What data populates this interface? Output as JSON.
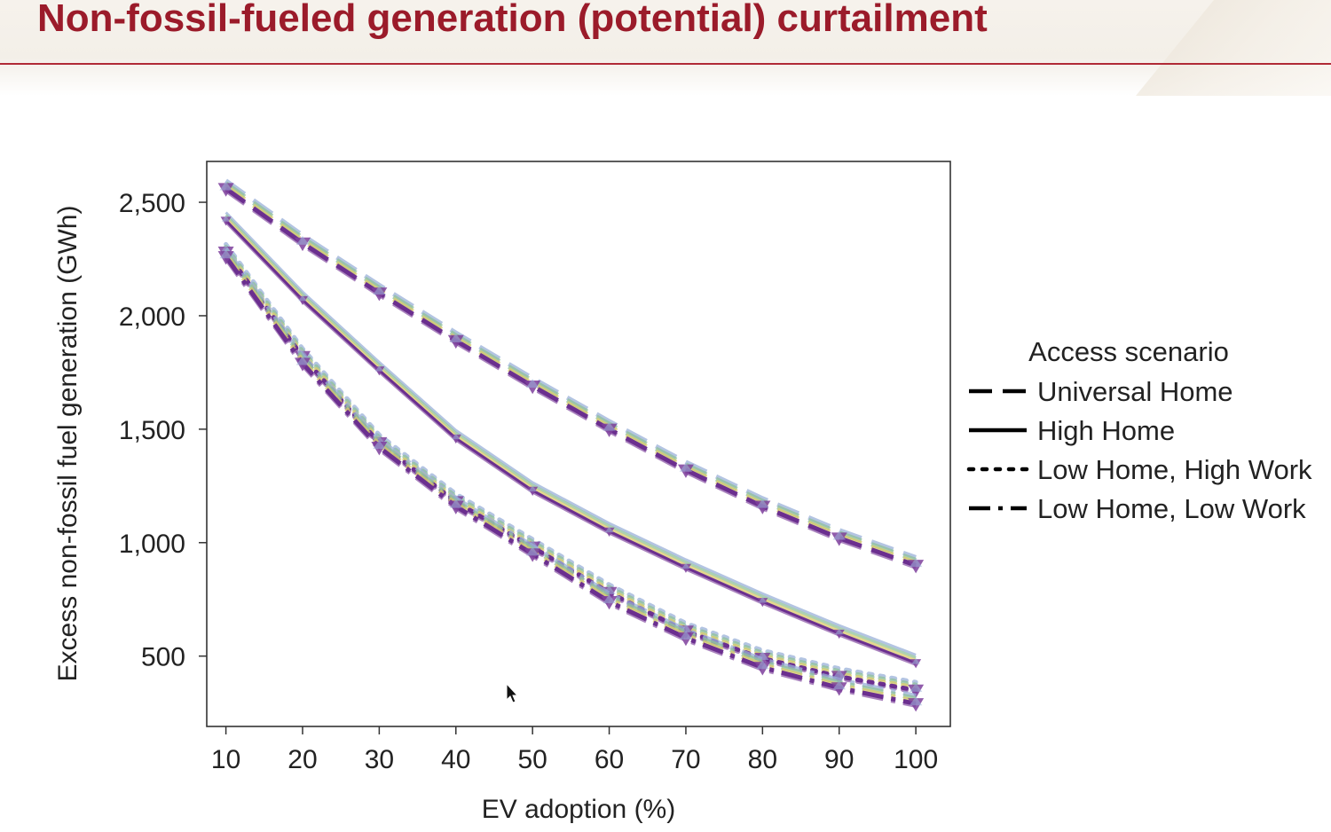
{
  "slide": {
    "title": "Non-fossil-fueled generation (potential) curtailment"
  },
  "chart_data": {
    "type": "line",
    "title": "",
    "xlabel": "EV adoption (%)",
    "ylabel": "Excess non-fossil fuel generation (GWh)",
    "x": [
      10,
      20,
      30,
      40,
      50,
      60,
      70,
      80,
      90,
      100
    ],
    "x_tick_labels": [
      "10",
      "20",
      "30",
      "40",
      "50",
      "60",
      "70",
      "80",
      "90",
      "100"
    ],
    "y_ticks": [
      500,
      1000,
      1500,
      2000,
      2500
    ],
    "y_tick_labels": [
      "500",
      "1,000",
      "1,500",
      "2,000",
      "2,500"
    ],
    "xlim": [
      7.5,
      104.5
    ],
    "ylim": [
      190,
      2680
    ],
    "grid": false,
    "legend": {
      "title": "Access scenario",
      "placement": "right"
    },
    "series": [
      {
        "name": "Universal Home",
        "dash": "dashed",
        "color": "#7b3f99",
        "values": [
          2560,
          2320,
          2100,
          1890,
          1690,
          1500,
          1320,
          1160,
          1020,
          900
        ]
      },
      {
        "name": "High Home",
        "dash": "solid",
        "color": "#6b2f8f",
        "values": [
          2420,
          2070,
          1760,
          1460,
          1230,
          1050,
          890,
          740,
          600,
          470
        ]
      },
      {
        "name": "Low Home, High Work",
        "dash": "dotted",
        "color": "#7b3f99",
        "values": [
          2280,
          1820,
          1440,
          1180,
          980,
          780,
          610,
          490,
          410,
          350
        ]
      },
      {
        "name": "Low Home, Low Work",
        "dash": "dashdot",
        "color": "#6b2f8f",
        "values": [
          2260,
          1790,
          1420,
          1160,
          950,
          740,
          580,
          450,
          360,
          290
        ]
      }
    ],
    "color_variants": [
      "#9ab0d8",
      "#8fc19a",
      "#d9c96a",
      "#8e5aa8",
      "#6b2f8f"
    ]
  }
}
